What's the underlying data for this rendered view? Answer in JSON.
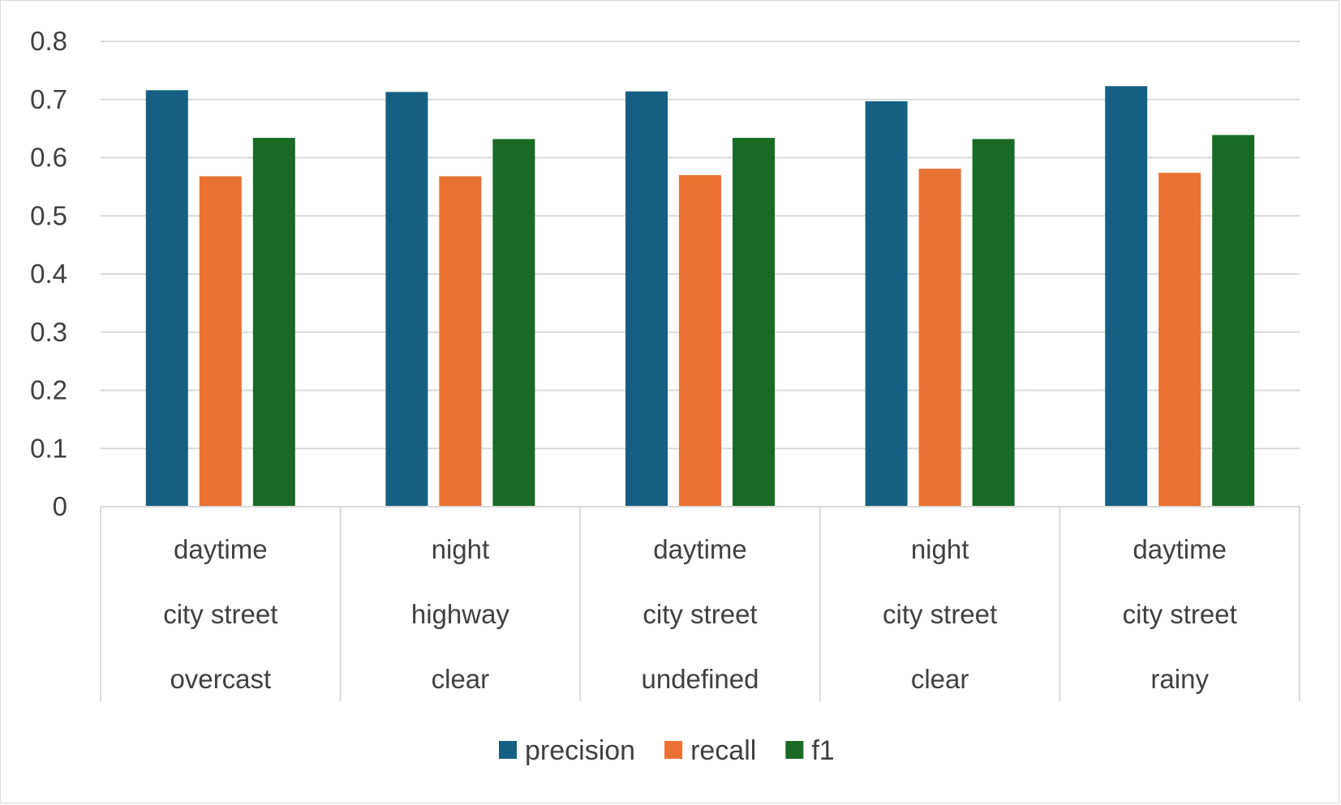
{
  "chart_data": {
    "type": "bar",
    "title": "",
    "xlabel": "",
    "ylabel": "",
    "ylim": [
      0,
      0.8
    ],
    "yticks": [
      "0",
      "0.1",
      "0.2",
      "0.3",
      "0.4",
      "0.5",
      "0.6",
      "0.7",
      "0.8"
    ],
    "grid": true,
    "legend_position": "bottom",
    "categories": [
      [
        "daytime",
        "city street",
        "overcast"
      ],
      [
        "night",
        "highway",
        "clear"
      ],
      [
        "daytime",
        "city street",
        "undefined"
      ],
      [
        "night",
        "city street",
        "clear"
      ],
      [
        "daytime",
        "city street",
        "rainy"
      ]
    ],
    "series": [
      {
        "name": "precision",
        "color": "#156082",
        "values": [
          0.716,
          0.713,
          0.714,
          0.697,
          0.723
        ]
      },
      {
        "name": "recall",
        "color": "#E97132",
        "values": [
          0.568,
          0.568,
          0.57,
          0.581,
          0.574
        ]
      },
      {
        "name": "f1",
        "color": "#196B24",
        "values": [
          0.634,
          0.632,
          0.634,
          0.632,
          0.639
        ]
      }
    ]
  }
}
